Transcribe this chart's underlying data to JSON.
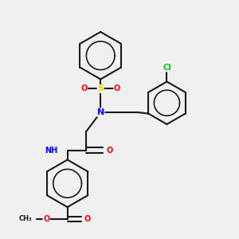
{
  "background_color": "#f0f0f0",
  "bond_color": "#1a1a1a",
  "colors": {
    "N": "#0000ff",
    "O": "#ff0000",
    "S": "#ffcc00",
    "Cl": "#00cc00",
    "C": "#1a1a1a",
    "H": "#808080"
  },
  "figsize": [
    3.0,
    3.0
  ],
  "dpi": 100
}
